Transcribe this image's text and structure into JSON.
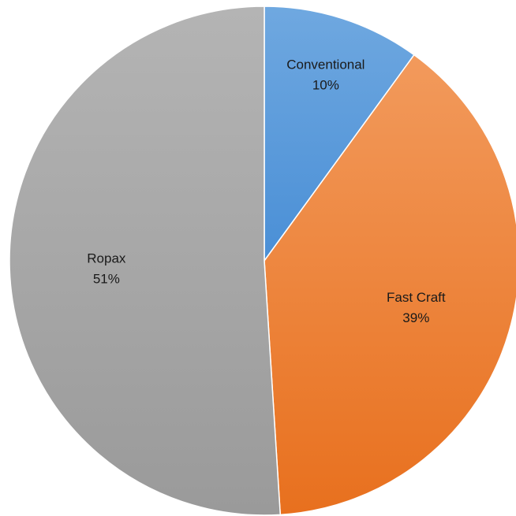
{
  "chart_data": {
    "type": "pie",
    "title": "",
    "categories": [
      "Conventional",
      "Fast Craft",
      "Ropax"
    ],
    "values": [
      10,
      39,
      51
    ],
    "value_labels": [
      "10%",
      "39%",
      "51%"
    ],
    "colors": {
      "Conventional": [
        "#6fa8e0",
        "#4a8fd6"
      ],
      "Fast Craft": [
        "#f29a5c",
        "#e8701e"
      ],
      "Ropax": [
        "#b4b4b4",
        "#9a9a9a"
      ]
    },
    "start_angle_deg": 0,
    "direction": "clockwise",
    "legend": "none",
    "border_color": "#ffffff"
  }
}
